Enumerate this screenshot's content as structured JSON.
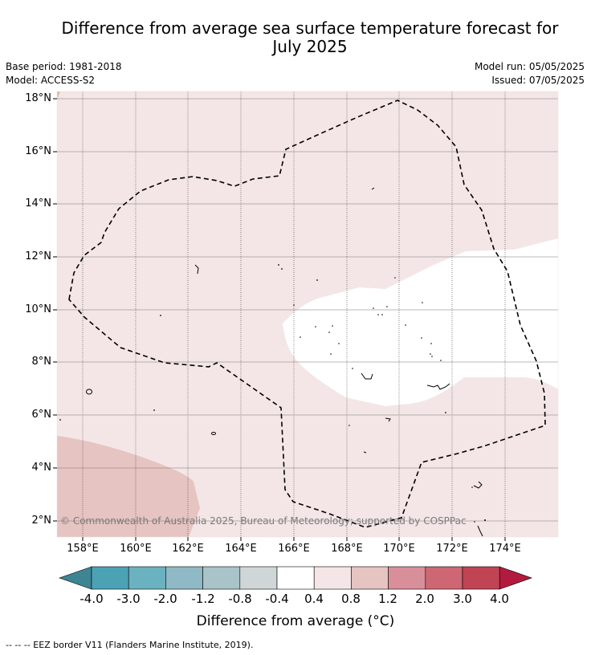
{
  "title": {
    "line1": "Difference from average sea surface temperature forecast for",
    "line2": "July 2025"
  },
  "meta": {
    "base_period": "Base period: 1981-2018",
    "model": "Model: ACCESS-S2",
    "model_run": "Model run: 05/05/2025",
    "issued": "Issued: 07/05/2025"
  },
  "map": {
    "lat_labels": [
      "18°N",
      "16°N",
      "14°N",
      "12°N",
      "10°N",
      "8°N",
      "6°N",
      "4°N",
      "2°N"
    ],
    "lon_labels": [
      "158°E",
      "160°E",
      "162°E",
      "164°E",
      "166°E",
      "168°E",
      "170°E",
      "172°E",
      "174°E"
    ],
    "copyright": "© Commonwealth of Australia 2025, Bureau of Meteorology; supported by COSPPac",
    "fill_colors": {
      "land": "#d8bfa3",
      "range_0_4_to_0_8": "#f4e6e6",
      "range_0_8_to_1_2": "#e6c4c1",
      "range_neg0_4_to_0_4": "#ffffff"
    }
  },
  "colorbar": {
    "tick_labels": [
      "-4.0",
      "-3.0",
      "-2.0",
      "-1.2",
      "-0.8",
      "-0.4",
      "0.4",
      "0.8",
      "1.2",
      "2.0",
      "3.0",
      "4.0"
    ],
    "colors": [
      "#3d8592",
      "#4ba2b5",
      "#6bb2c0",
      "#8fb9c5",
      "#a9c4c8",
      "#d0d6d8",
      "#ffffff",
      "#f4e6e6",
      "#e6c4c1",
      "#d98f99",
      "#cd6773",
      "#c14454",
      "#b31b3e"
    ],
    "title": "Difference from average (°C)"
  },
  "footer": {
    "legend_text": "--  --  -- EEZ border V11 (Flanders Marine Institute, 2019)."
  }
}
